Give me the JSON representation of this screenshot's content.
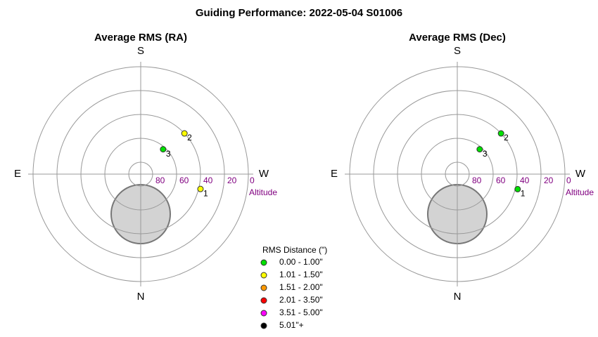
{
  "title": "Guiding Performance: 2022-05-04 S01006",
  "chart_data": [
    {
      "type": "polar-scatter",
      "title": "Average RMS (RA)",
      "r_label": "Altitude",
      "rlim": [
        90,
        0
      ],
      "rticks": [
        80,
        60,
        40,
        20,
        0
      ],
      "azticks": [
        {
          "value": 180,
          "label": "S"
        },
        {
          "value": 270,
          "label": "W"
        },
        {
          "value": 0,
          "label": "N"
        },
        {
          "value": 90,
          "label": "E"
        }
      ],
      "points": {
        "labels": [
          "1",
          "2",
          "3"
        ],
        "azimuth": [
          284,
          227,
          222
        ],
        "altitude": [
          38.5,
          40,
          62
        ],
        "colors": [
          "#ffff00",
          "#ffff00",
          "#00e000"
        ]
      }
    },
    {
      "type": "polar-scatter",
      "title": "Average RMS (Dec)",
      "r_label": "Altitude",
      "rlim": [
        90,
        0
      ],
      "rticks": [
        80,
        60,
        40,
        20,
        0
      ],
      "azticks": [
        {
          "value": 180,
          "label": "S"
        },
        {
          "value": 270,
          "label": "W"
        },
        {
          "value": 0,
          "label": "N"
        },
        {
          "value": 90,
          "label": "E"
        }
      ],
      "points": {
        "labels": [
          "1",
          "2",
          "3"
        ],
        "azimuth": [
          284,
          227,
          222
        ],
        "altitude": [
          38,
          40,
          62
        ],
        "colors": [
          "#00e000",
          "#00e000",
          "#00e000"
        ]
      }
    }
  ],
  "legend": {
    "title": "RMS Distance (\")",
    "items": [
      {
        "label": "0.00 - 1.00\"",
        "color": "#00e000"
      },
      {
        "label": "1.01 - 1.50\"",
        "color": "#ffff00"
      },
      {
        "label": "1.51 - 2.00\"",
        "color": "#ff9900"
      },
      {
        "label": "2.01 - 3.50\"",
        "color": "#ff0000"
      },
      {
        "label": "3.51 - 5.00\"",
        "color": "#ff00ff"
      },
      {
        "label": "5.01\"+",
        "color": "#000000"
      }
    ]
  }
}
